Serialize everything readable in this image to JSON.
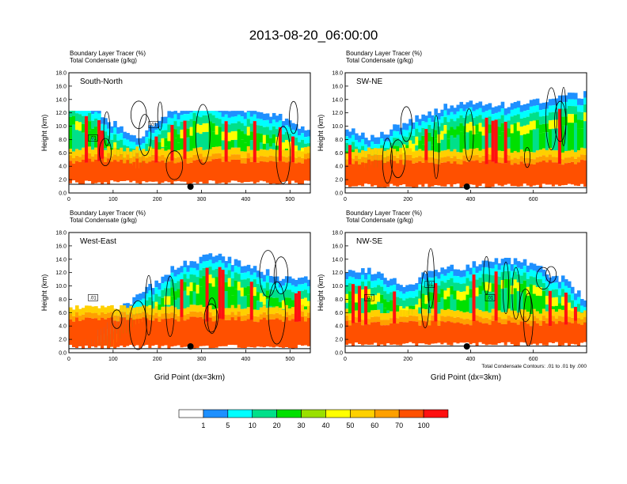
{
  "title": "2013-08-20_06:00:00",
  "colors": {
    "levels": [
      "#ffffff",
      "#1e90ff",
      "#00ffff",
      "#00e08a",
      "#00e000",
      "#9ae000",
      "#ffff00",
      "#ffd000",
      "#ffa000",
      "#ff5000",
      "#ff1010"
    ],
    "terrain": "#000000",
    "marker": "#000000"
  },
  "chart_data": [
    {
      "type": "heatmap",
      "panel_label": "South-North",
      "heading_lines": [
        "Boundary Layer Tracer   (%)",
        "Total Condensate   (g/kg)"
      ],
      "ylabel": "Height (km)",
      "xlabel": "",
      "xlim": [
        0,
        546
      ],
      "ylim": [
        0,
        18
      ],
      "xticks": [
        "0",
        "100",
        "200",
        "300",
        "400",
        "500"
      ],
      "yticks": [
        "0.0",
        "2.0",
        "4.0",
        "6.0",
        "8.0",
        "10.0",
        "12.0",
        "14.0",
        "16.0",
        "18.0"
      ],
      "contour_labels": [
        ".01",
        ".01"
      ],
      "marker_x": 275
    },
    {
      "type": "heatmap",
      "panel_label": "SW-NE",
      "heading_lines": [
        "Boundary Layer Tracer   (%)",
        "Total Condensate   (g/kg)"
      ],
      "ylabel": "Height (km)",
      "xlabel": "",
      "xlim": [
        0,
        770
      ],
      "ylim": [
        0,
        18
      ],
      "xticks": [
        "0",
        "200",
        "400",
        "600"
      ],
      "yticks": [
        "0.0",
        "2.0",
        "4.0",
        "6.0",
        "8.0",
        "10.0",
        "12.0",
        "14.0",
        "16.0",
        "18.0"
      ],
      "contour_labels": [],
      "marker_x": 388
    },
    {
      "type": "heatmap",
      "panel_label": "West-East",
      "heading_lines": [
        "Boundary Layer Tracer   (%)",
        "Total Condensate   (g/kg)"
      ],
      "ylabel": "Height (km)",
      "xlabel": "Grid Point (dx=3km)",
      "xlim": [
        0,
        546
      ],
      "ylim": [
        0,
        18
      ],
      "xticks": [
        "0",
        "100",
        "200",
        "300",
        "400",
        "500"
      ],
      "yticks": [
        "0.0",
        "2.0",
        "4.0",
        "6.0",
        "8.0",
        "10.0",
        "12.0",
        "14.0",
        "16.0",
        "18.0"
      ],
      "contour_labels": [
        ".01"
      ],
      "marker_x": 275
    },
    {
      "type": "heatmap",
      "panel_label": "NW-SE",
      "heading_lines": [
        "Boundary Layer Tracer   (%)",
        "Total Condensate   (g/kg)"
      ],
      "ylabel": "Height (km)",
      "xlabel": "Grid Point (dx=3km)",
      "xlim": [
        0,
        770
      ],
      "ylim": [
        0,
        18
      ],
      "xticks": [
        "0",
        "200",
        "400",
        "600"
      ],
      "yticks": [
        "0.0",
        "2.0",
        "4.0",
        "6.0",
        "8.0",
        "10.0",
        "12.0",
        "14.0",
        "16.0",
        "18.0"
      ],
      "contour_labels": [
        ".01",
        ".01",
        ".01"
      ],
      "marker_x": 388,
      "footnote": "Total Condensate Contours: .01 to .01 by .000"
    }
  ],
  "colorbar": {
    "labels": [
      "1",
      "5",
      "10",
      "20",
      "30",
      "40",
      "50",
      "60",
      "70",
      "100"
    ]
  }
}
